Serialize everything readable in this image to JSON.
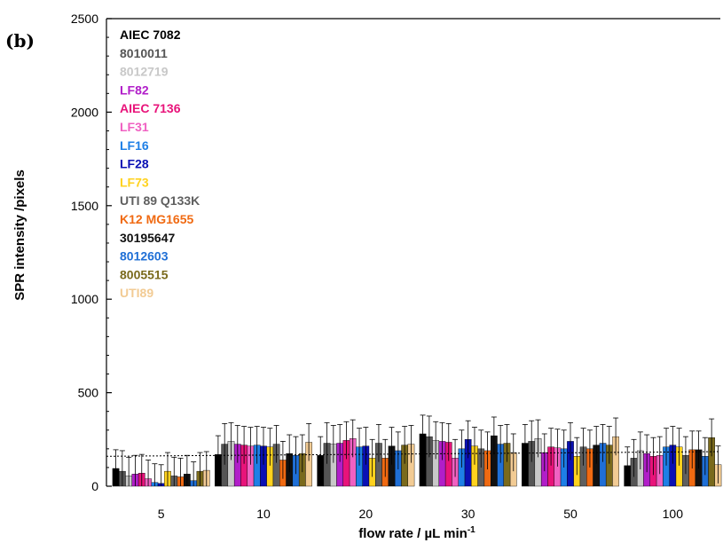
{
  "panel_label": "(b)",
  "chart_data": {
    "type": "bar",
    "title": "",
    "xlabel": "flow rate / µL min",
    "xlabel_superscript": "-1",
    "ylabel": "SPR intensity /pixels",
    "ylim": [
      0,
      2500
    ],
    "yticks": [
      0,
      500,
      1000,
      1500,
      2000,
      2500
    ],
    "grid": false,
    "legend_position": "top-left",
    "categories": [
      "5",
      "10",
      "20",
      "30",
      "50",
      "100"
    ],
    "series": [
      {
        "name": "AIEC 7082",
        "color": "#000000",
        "values": [
          95,
          170,
          165,
          280,
          230,
          110
        ],
        "errors": [
          100,
          100,
          100,
          100,
          100,
          100
        ]
      },
      {
        "name": "8010011",
        "color": "#555555",
        "values": [
          80,
          225,
          230,
          265,
          240,
          150
        ],
        "errors": [
          110,
          110,
          110,
          110,
          110,
          100
        ]
      },
      {
        "name": "8012719",
        "color": "#c8c8c8",
        "values": [
          55,
          240,
          225,
          245,
          255,
          190
        ],
        "errors": [
          100,
          100,
          100,
          100,
          100,
          100
        ]
      },
      {
        "name": "LF82",
        "color": "#b11ec9",
        "values": [
          65,
          225,
          230,
          240,
          180,
          175
        ],
        "errors": [
          100,
          100,
          100,
          100,
          100,
          100
        ]
      },
      {
        "name": "AIEC 7136",
        "color": "#e8137a",
        "values": [
          70,
          220,
          245,
          235,
          210,
          160
        ],
        "errors": [
          100,
          100,
          100,
          100,
          100,
          100
        ]
      },
      {
        "name": "LF31",
        "color": "#f061c2",
        "values": [
          40,
          215,
          255,
          150,
          205,
          165
        ],
        "errors": [
          100,
          100,
          100,
          100,
          100,
          100
        ]
      },
      {
        "name": "LF16",
        "color": "#1e7fe6",
        "values": [
          20,
          220,
          210,
          200,
          200,
          210
        ],
        "errors": [
          100,
          100,
          100,
          100,
          100,
          100
        ]
      },
      {
        "name": "LF28",
        "color": "#0a10b4",
        "values": [
          15,
          215,
          215,
          250,
          240,
          220
        ],
        "errors": [
          100,
          100,
          100,
          100,
          100,
          100
        ]
      },
      {
        "name": "LF73",
        "color": "#ffd21e",
        "values": [
          80,
          210,
          150,
          215,
          160,
          210
        ],
        "errors": [
          100,
          100,
          100,
          100,
          100,
          100
        ]
      },
      {
        "name": "UTI 89 Q133K",
        "color": "#5f5f5f",
        "values": [
          55,
          225,
          230,
          200,
          210,
          165
        ],
        "errors": [
          100,
          100,
          100,
          100,
          100,
          100
        ]
      },
      {
        "name": "K12 MG1655",
        "color": "#f06a12",
        "values": [
          50,
          140,
          150,
          190,
          200,
          195
        ],
        "errors": [
          100,
          100,
          100,
          100,
          100,
          100
        ]
      },
      {
        "name": "30195647",
        "color": "#111111",
        "values": [
          65,
          175,
          215,
          270,
          220,
          195
        ],
        "errors": [
          100,
          100,
          100,
          100,
          100,
          100
        ]
      },
      {
        "name": "8012603",
        "color": "#1f6fd6",
        "values": [
          30,
          165,
          190,
          225,
          230,
          160
        ],
        "errors": [
          100,
          100,
          100,
          100,
          100,
          100
        ]
      },
      {
        "name": "8005515",
        "color": "#7a6a1c",
        "values": [
          80,
          175,
          220,
          230,
          220,
          260
        ],
        "errors": [
          100,
          100,
          100,
          100,
          100,
          100
        ]
      },
      {
        "name": "UTI89",
        "color": "#f2cb94",
        "values": [
          85,
          235,
          225,
          180,
          265,
          115
        ],
        "errors": [
          100,
          100,
          100,
          100,
          100,
          100
        ]
      }
    ],
    "trendline": {
      "style": "dotted",
      "color": "#000000",
      "start": 160,
      "end": 185
    }
  }
}
